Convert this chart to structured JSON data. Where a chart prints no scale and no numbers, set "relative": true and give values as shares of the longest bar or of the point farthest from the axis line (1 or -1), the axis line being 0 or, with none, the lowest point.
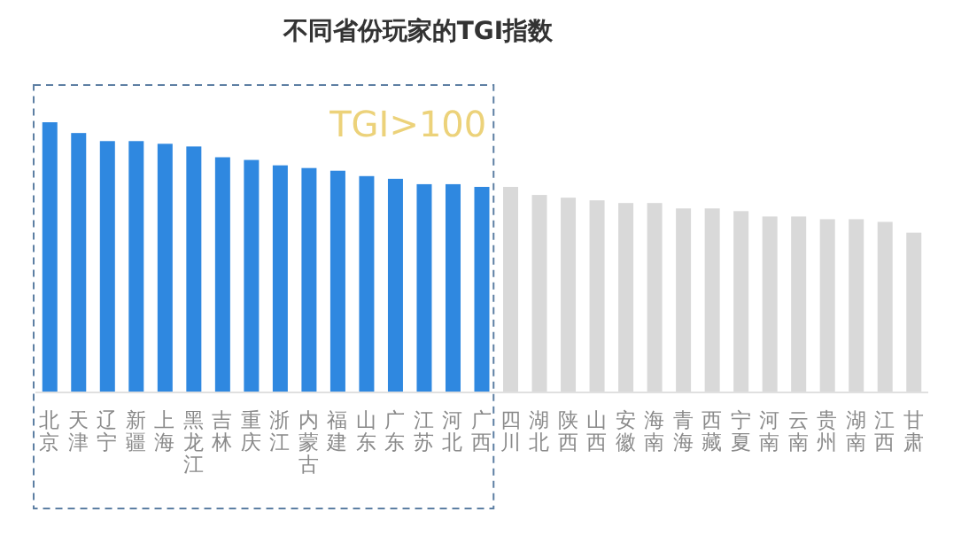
{
  "chart_data": {
    "type": "bar",
    "relative": true,
    "title": "不同省份玩家的TGI指数",
    "categories": [
      "北京",
      "天津",
      "辽宁",
      "新疆",
      "上海",
      "黑龙江",
      "吉林",
      "重庆",
      "浙江",
      "内蒙古",
      "福建",
      "山东",
      "广东",
      "江苏",
      "河北",
      "广西",
      "四川",
      "湖北",
      "陕西",
      "山西",
      "安徽",
      "海南",
      "青海",
      "西藏",
      "宁夏",
      "河南",
      "云南",
      "贵州",
      "湖南",
      "江西",
      "甘肃"
    ],
    "values": [
      1,
      0.96,
      0.93,
      0.93,
      0.92,
      0.91,
      0.87,
      0.86,
      0.84,
      0.83,
      0.82,
      0.8,
      0.79,
      0.77,
      0.77,
      0.76,
      0.76,
      0.73,
      0.72,
      0.71,
      0.7,
      0.7,
      0.68,
      0.68,
      0.67,
      0.65,
      0.65,
      0.64,
      0.64,
      0.63,
      0.59
    ],
    "colors": [
      "#2f88e0",
      "#2f88e0",
      "#2f88e0",
      "#2f88e0",
      "#2f88e0",
      "#2f88e0",
      "#2f88e0",
      "#2f88e0",
      "#2f88e0",
      "#2f88e0",
      "#2f88e0",
      "#2f88e0",
      "#2f88e0",
      "#2f88e0",
      "#2f88e0",
      "#2f88e0",
      "#d9d9d9",
      "#d9d9d9",
      "#d9d9d9",
      "#d9d9d9",
      "#d9d9d9",
      "#d9d9d9",
      "#d9d9d9",
      "#d9d9d9",
      "#d9d9d9",
      "#d9d9d9",
      "#d9d9d9",
      "#d9d9d9",
      "#d9d9d9",
      "#d9d9d9",
      "#d9d9d9"
    ],
    "annotations": [
      "TGI>100"
    ]
  }
}
